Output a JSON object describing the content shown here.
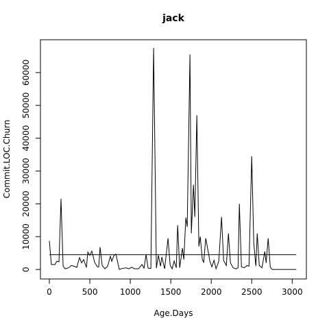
{
  "chart_data": {
    "type": "line",
    "title": "jack",
    "x_label": "Age.Days",
    "y_label": "Commit.LOC.Churn",
    "x": [
      0,
      25,
      68,
      93,
      119,
      144,
      170,
      195,
      237,
      271,
      305,
      339,
      373,
      398,
      424,
      458,
      475,
      500,
      525,
      559,
      593,
      610,
      627,
      653,
      686,
      720,
      754,
      771,
      797,
      822,
      864,
      898,
      949,
      983,
      1017,
      1051,
      1102,
      1144,
      1169,
      1195,
      1220,
      1254,
      1288,
      1322,
      1347,
      1373,
      1390,
      1424,
      1466,
      1492,
      1517,
      1542,
      1568,
      1585,
      1610,
      1644,
      1661,
      1686,
      1703,
      1737,
      1754,
      1780,
      1797,
      1822,
      1847,
      1864,
      1890,
      1907,
      1932,
      1958,
      1983,
      2008,
      2034,
      2059,
      2093,
      2127,
      2153,
      2186,
      2212,
      2237,
      2271,
      2305,
      2331,
      2347,
      2373,
      2407,
      2441,
      2466,
      2500,
      2525,
      2551,
      2568,
      2593,
      2627,
      2661,
      2678,
      2703,
      2729,
      2754,
      2800,
      2900,
      3000,
      3050
    ],
    "values": [
      8700,
      1500,
      1500,
      2500,
      2300,
      21500,
      1000,
      200,
      500,
      1200,
      1000,
      600,
      3600,
      2000,
      3000,
      600,
      5300,
      4300,
      5600,
      2200,
      800,
      800,
      6800,
      1200,
      200,
      1000,
      4000,
      2500,
      4200,
      4700,
      0,
      300,
      500,
      200,
      700,
      200,
      200,
      1500,
      400,
      4500,
      400,
      300,
      67500,
      400,
      4300,
      1000,
      3800,
      200,
      9500,
      1300,
      200,
      2600,
      500,
      13500,
      500,
      6500,
      3000,
      15800,
      13000,
      65500,
      11000,
      25800,
      16000,
      47000,
      7000,
      10000,
      3000,
      2200,
      9500,
      6000,
      2500,
      800,
      2800,
      200,
      2500,
      16000,
      2700,
      1200,
      11000,
      2000,
      500,
      200,
      500,
      20000,
      800,
      500,
      1200,
      1000,
      34500,
      8000,
      1000,
      11000,
      1200,
      500,
      5500,
      2000,
      9500,
      700,
      0,
      0,
      0,
      0,
      0
    ],
    "hline": 4500,
    "color": "#000000",
    "xlim": [
      -110,
      3175
    ],
    "ylim": [
      -2900,
      70000
    ],
    "xticks": [
      0,
      500,
      1000,
      1500,
      2000,
      2500,
      3000
    ],
    "yticks": [
      0,
      10000,
      20000,
      30000,
      40000,
      50000,
      60000
    ]
  }
}
